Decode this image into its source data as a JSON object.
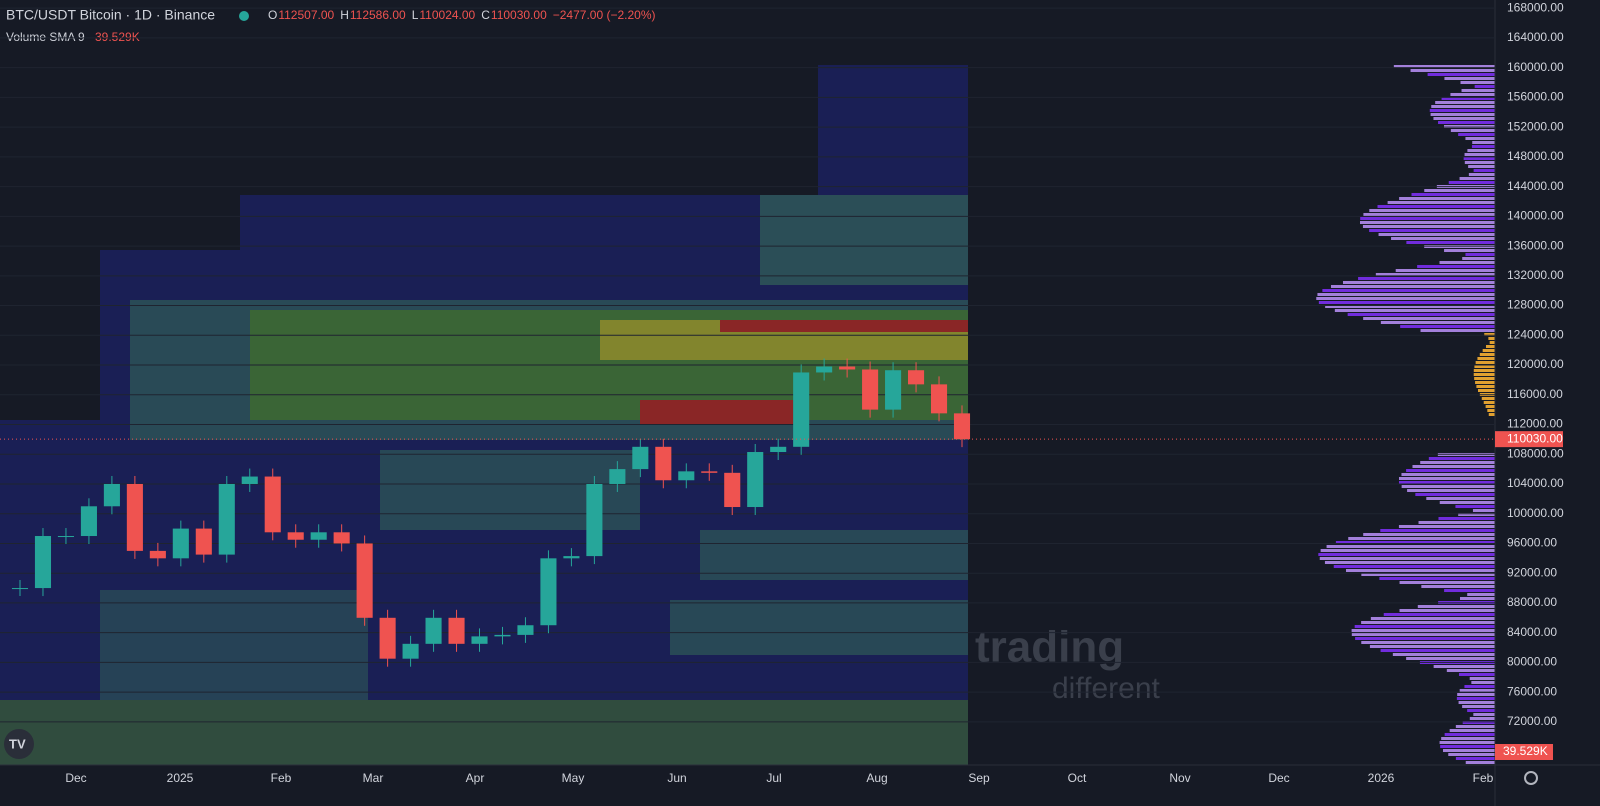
{
  "header": {
    "symbol": "BTC/USDT Bitcoin · 1D · Binance",
    "ohlc": [
      {
        "key": "O",
        "value": "112507.00"
      },
      {
        "key": "H",
        "value": "112586.00"
      },
      {
        "key": "L",
        "value": "110024.00"
      },
      {
        "key": "C",
        "value": "110030.00"
      }
    ],
    "change": "−2477.00 (−2.20%)",
    "indicator": "Volume SMA 9",
    "indicator_value": "39.529K"
  },
  "chart_data": {
    "type": "candlestick",
    "closes": [
      90000,
      97000,
      97000,
      101000,
      104000,
      95000,
      94000,
      98000,
      94500,
      104000,
      105000,
      97500,
      96500,
      97500,
      96000,
      86000,
      80500,
      82500,
      86000,
      82500,
      83500,
      83700,
      85000,
      94000,
      94300,
      104000,
      106000,
      109000,
      104500,
      105700,
      105500,
      100900,
      108300,
      109000,
      119000,
      119800,
      119400,
      114000,
      119300,
      117400,
      113500,
      110030
    ],
    "last_price": {
      "value": 110030,
      "label": "110030.00"
    },
    "ylim": [
      66200,
      169100
    ],
    "yticks": [
      {
        "value": 72000,
        "label": "72000.00"
      },
      {
        "value": 76000,
        "label": "76000.00"
      },
      {
        "value": 80000,
        "label": "80000.00"
      },
      {
        "value": 84000,
        "label": "84000.00"
      },
      {
        "value": 88000,
        "label": "88000.00"
      },
      {
        "value": 92000,
        "label": "92000.00"
      },
      {
        "value": 96000,
        "label": "96000.00"
      },
      {
        "value": 100000,
        "label": "100000.00"
      },
      {
        "value": 104000,
        "label": "104000.00"
      },
      {
        "value": 108000,
        "label": "108000.00"
      },
      {
        "value": 112000,
        "label": "112000.00"
      },
      {
        "value": 116000,
        "label": "116000.00"
      },
      {
        "value": 120000,
        "label": "120000.00"
      },
      {
        "value": 124000,
        "label": "124000.00"
      },
      {
        "value": 128000,
        "label": "128000.00"
      },
      {
        "value": 132000,
        "label": "132000.00"
      },
      {
        "value": 136000,
        "label": "136000.00"
      },
      {
        "value": 140000,
        "label": "140000.00"
      },
      {
        "value": 144000,
        "label": "144000.00"
      },
      {
        "value": 148000,
        "label": "148000.00"
      },
      {
        "value": 152000,
        "label": "152000.00"
      },
      {
        "value": 156000,
        "label": "156000.00"
      },
      {
        "value": 160000,
        "label": "160000.00"
      },
      {
        "value": 164000,
        "label": "164000.00"
      },
      {
        "value": 168000,
        "label": "168000.00"
      }
    ],
    "x_labels": [
      "Dec",
      "2025",
      "Feb",
      "Mar",
      "Apr",
      "May",
      "Jun",
      "Jul",
      "Aug",
      "Sep",
      "Oct",
      "Nov",
      "Dec",
      "2026",
      "Feb"
    ]
  },
  "watermark": [
    "trading",
    "different"
  ]
}
